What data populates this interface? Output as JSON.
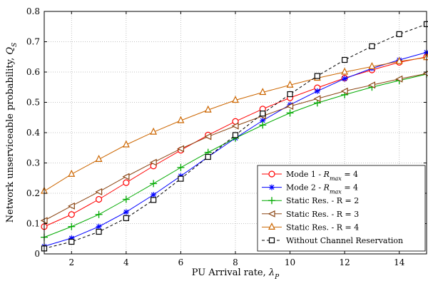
{
  "chart_data": {
    "type": "line",
    "xlabel": "PU Arrival rate, λ_P",
    "ylabel": "Network unserviceable probability, Q_S",
    "xlim": [
      1,
      15
    ],
    "ylim": [
      0,
      0.8
    ],
    "x_ticks": [
      2,
      4,
      6,
      8,
      10,
      12,
      14
    ],
    "y_ticks": [
      0,
      0.1,
      0.2,
      0.3,
      0.4,
      0.5,
      0.6,
      0.7,
      0.8
    ],
    "grid": true,
    "legend_position": "bottom-right",
    "x": [
      1,
      2,
      3,
      4,
      5,
      6,
      7,
      8,
      9,
      10,
      11,
      12,
      13,
      14,
      15
    ],
    "series": [
      {
        "name": "Mode 1 - R_max = 4",
        "color": "#ff0000",
        "marker": "circle",
        "dash": "solid",
        "values": [
          0.09,
          0.13,
          0.18,
          0.235,
          0.29,
          0.342,
          0.392,
          0.437,
          0.478,
          0.515,
          0.548,
          0.58,
          0.607,
          0.632,
          0.65
        ]
      },
      {
        "name": "Mode 2 - R_max = 4",
        "color": "#0000ff",
        "marker": "star",
        "dash": "solid",
        "values": [
          0.025,
          0.052,
          0.09,
          0.138,
          0.195,
          0.257,
          0.32,
          0.382,
          0.44,
          0.492,
          0.537,
          0.578,
          0.612,
          0.64,
          0.665
        ]
      },
      {
        "name": "Static Res. - R = 2",
        "color": "#00aa00",
        "marker": "plus",
        "dash": "solid",
        "values": [
          0.055,
          0.09,
          0.13,
          0.18,
          0.232,
          0.285,
          0.335,
          0.382,
          0.425,
          0.465,
          0.498,
          0.525,
          0.55,
          0.572,
          0.593
        ]
      },
      {
        "name": "Static Res. - R = 3",
        "color": "#8b4513",
        "marker": "triangle-left",
        "dash": "solid",
        "values": [
          0.11,
          0.158,
          0.205,
          0.255,
          0.302,
          0.347,
          0.387,
          0.422,
          0.455,
          0.487,
          0.512,
          0.537,
          0.557,
          0.577,
          0.595
        ]
      },
      {
        "name": "Static Res. - R = 4",
        "color": "#cc6600",
        "marker": "triangle-up",
        "dash": "solid",
        "values": [
          0.207,
          0.263,
          0.312,
          0.36,
          0.402,
          0.44,
          0.475,
          0.507,
          0.533,
          0.557,
          0.58,
          0.6,
          0.618,
          0.635,
          0.648
        ]
      },
      {
        "name": "Without Channel Reservation",
        "color": "#000000",
        "marker": "square",
        "dash": "dashed",
        "values": [
          0.018,
          0.04,
          0.073,
          0.118,
          0.178,
          0.248,
          0.32,
          0.392,
          0.463,
          0.527,
          0.587,
          0.64,
          0.685,
          0.725,
          0.758
        ]
      }
    ]
  }
}
